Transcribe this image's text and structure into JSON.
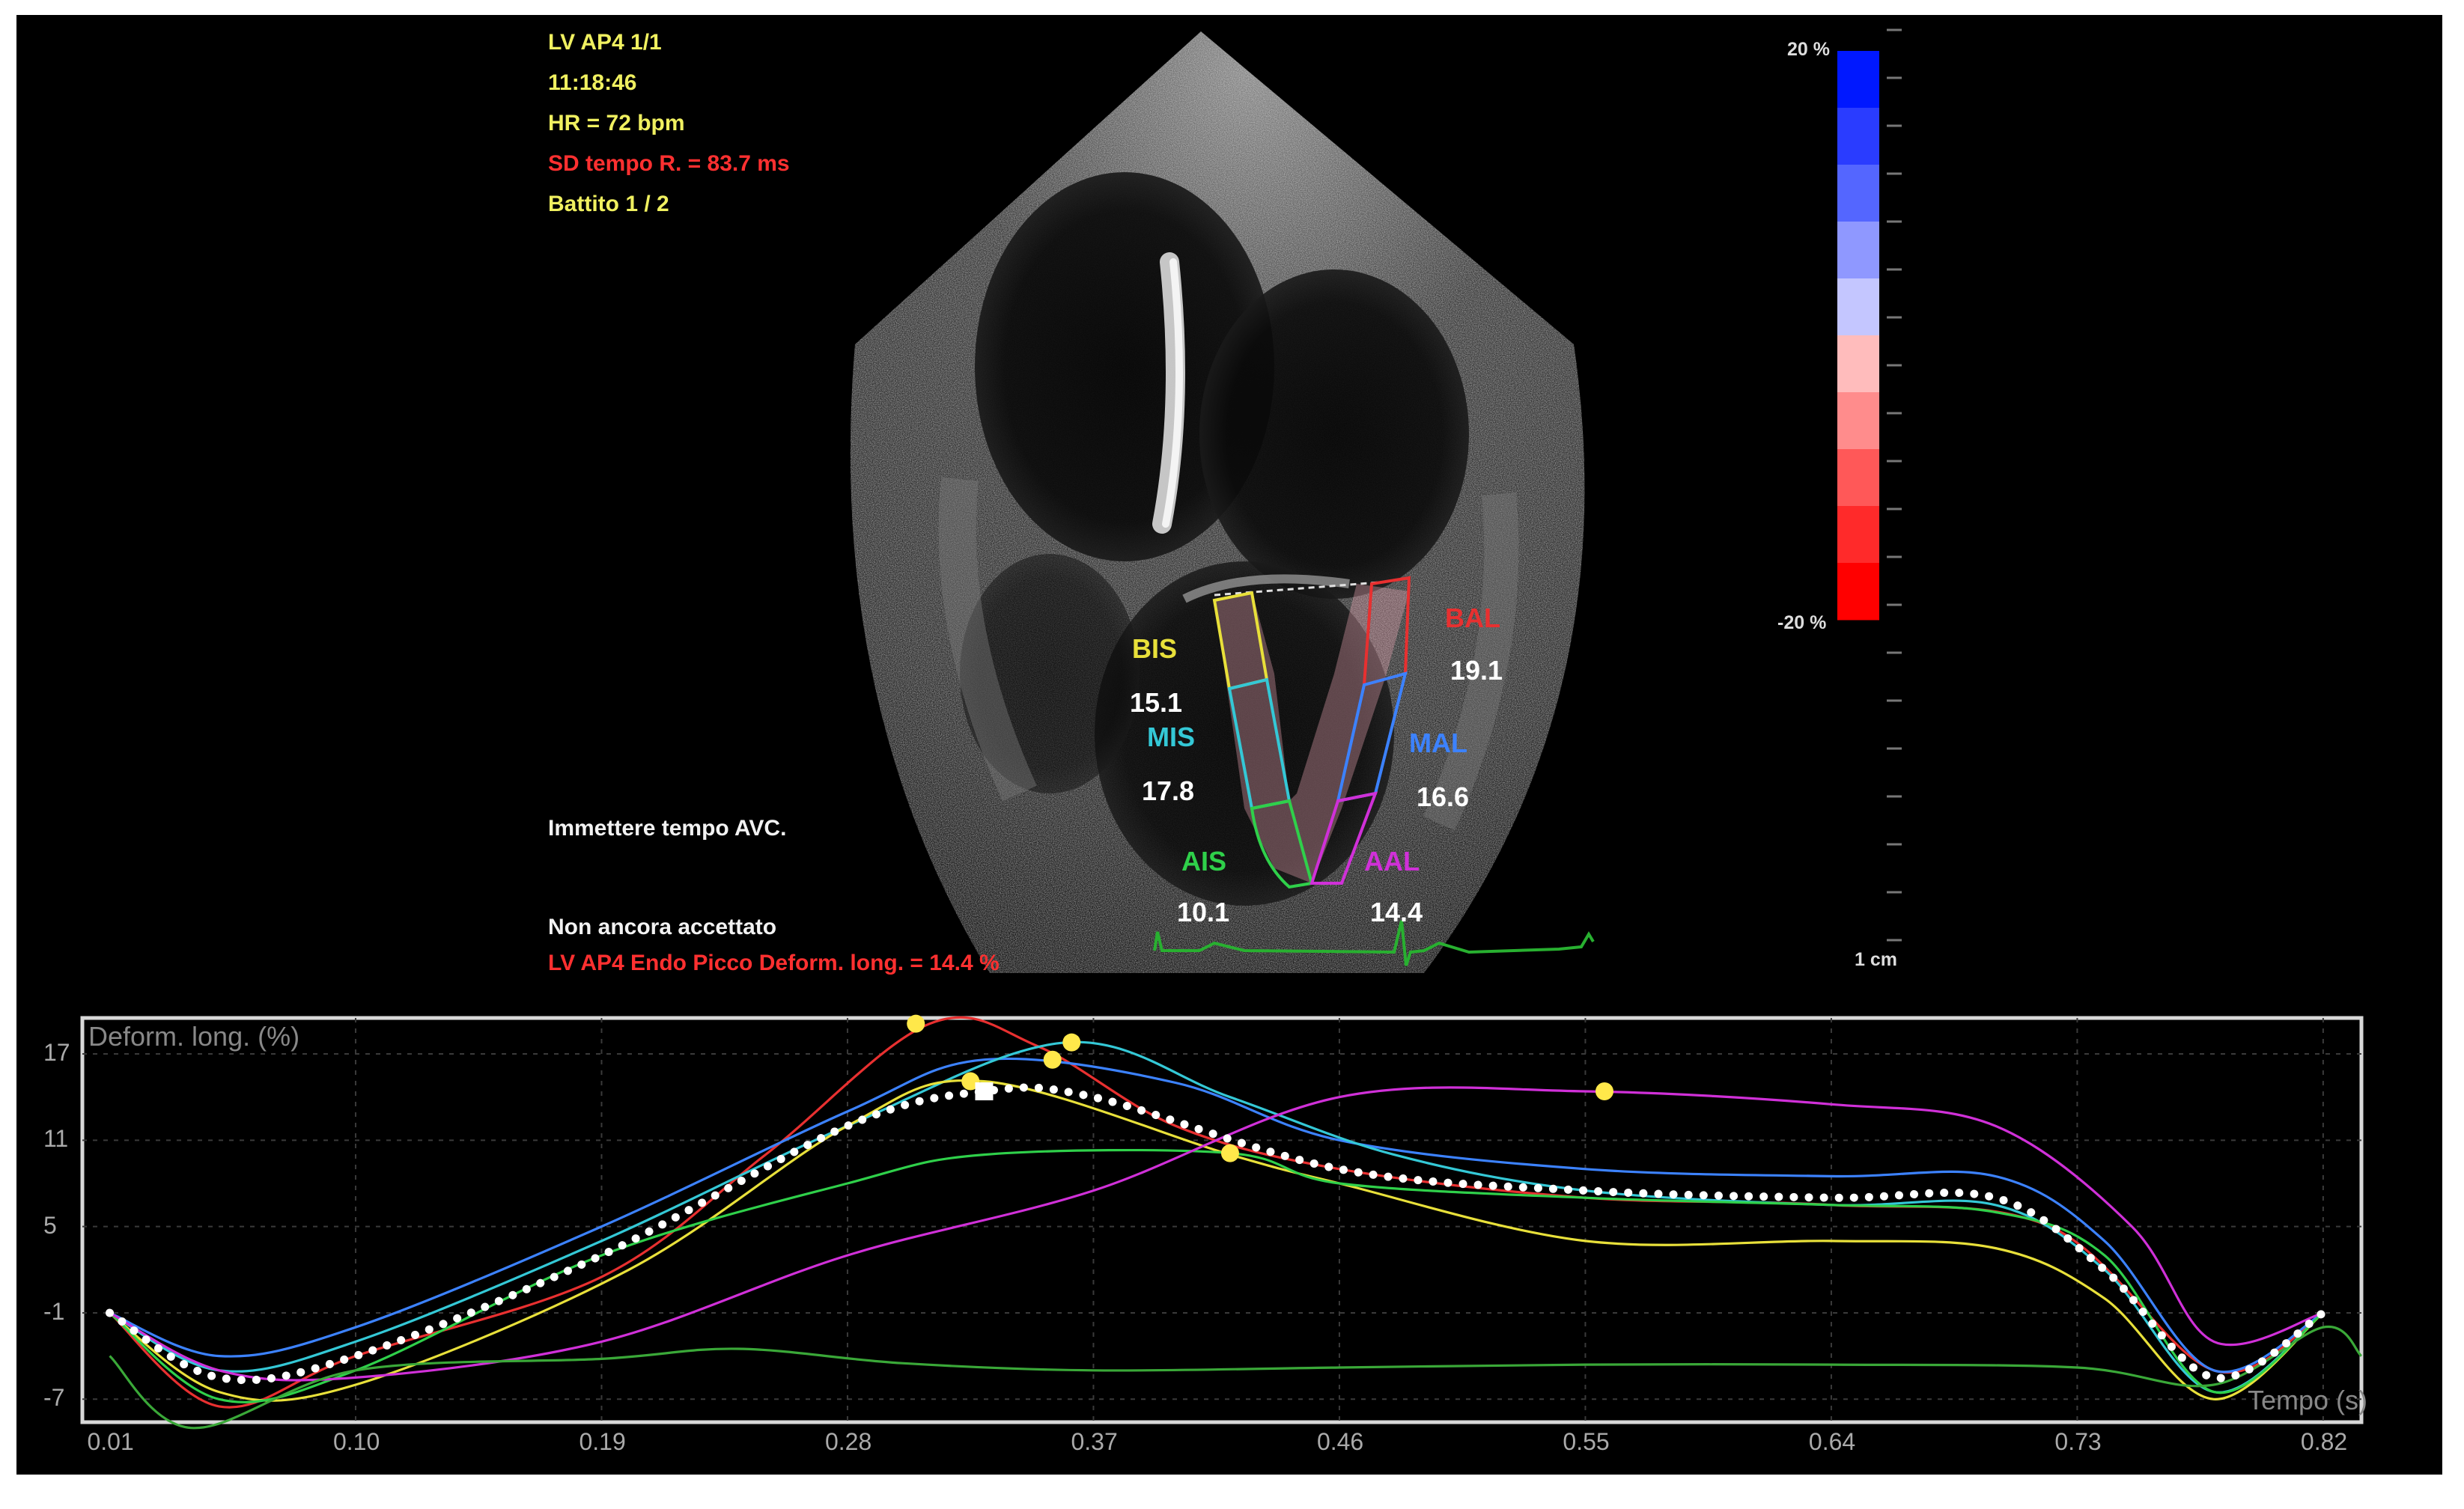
{
  "overlay": {
    "view": "LV AP4  1/1",
    "time": "11:18:46",
    "heart_rate": "HR = 72 bpm",
    "sd_tempo": "SD tempo R. = 83.7 ms",
    "battito": "Battito 1 / 2",
    "avc_prompt": "Immettere tempo AVC.",
    "not_accepted": "Non ancora accettato",
    "peak_strain": "LV AP4 Endo Picco Deform. long. = 14.4 %"
  },
  "colorbar": {
    "top_label": "20 %",
    "bottom_label": "-20 %",
    "scale_label": "1 cm",
    "colors": [
      "#0018ff",
      "#2a3cff",
      "#5466ff",
      "#8f98ff",
      "#c4c6ff",
      "#ffbcbc",
      "#ff8c8c",
      "#ff5858",
      "#ff2a2a",
      "#ff0000"
    ]
  },
  "segments": [
    {
      "name": "BIS",
      "value": "15.1",
      "color": "#e8e03a"
    },
    {
      "name": "MIS",
      "value": "17.8",
      "color": "#34c8d6"
    },
    {
      "name": "AIS",
      "value": "10.1",
      "color": "#2fd04a"
    },
    {
      "name": "BAL",
      "value": "19.1",
      "color": "#e83030"
    },
    {
      "name": "MAL",
      "value": "16.6",
      "color": "#3c82ff"
    },
    {
      "name": "AAL",
      "value": "14.4",
      "color": "#d030d8"
    }
  ],
  "chart_data": {
    "type": "line",
    "ylabel": "Deform. long. (%)",
    "xlabel": "Tempo (s)",
    "y_ticks": [
      17,
      11,
      5,
      -1,
      -7
    ],
    "x_ticks": [
      "0.01",
      "0.10",
      "0.19",
      "0.28",
      "0.37",
      "0.46",
      "0.55",
      "0.64",
      "0.73",
      "0.82"
    ],
    "xlim": [
      0.0,
      0.834
    ],
    "ylim": [
      -8.6,
      19.5
    ],
    "grid": true,
    "series": [
      {
        "color": "#e83030",
        "x": [
          0.01,
          0.05,
          0.1,
          0.19,
          0.25,
          0.31,
          0.35,
          0.4,
          0.46,
          0.55,
          0.64,
          0.72,
          0.78,
          0.82
        ],
        "y": [
          -1,
          -7.5,
          -4,
          1.5,
          10,
          19.1,
          17.5,
          12,
          9,
          7,
          6.5,
          5,
          -5,
          -1
        ]
      },
      {
        "color": "#3c82ff",
        "x": [
          0.01,
          0.05,
          0.1,
          0.19,
          0.28,
          0.33,
          0.4,
          0.46,
          0.55,
          0.64,
          0.7,
          0.74,
          0.78,
          0.82
        ],
        "y": [
          -1,
          -4,
          -2,
          5,
          13,
          16.6,
          15,
          11,
          9,
          8.5,
          8.5,
          4,
          -5,
          -1
        ]
      },
      {
        "color": "#34c8d6",
        "x": [
          0.01,
          0.05,
          0.1,
          0.19,
          0.28,
          0.36,
          0.42,
          0.48,
          0.55,
          0.64,
          0.7,
          0.74,
          0.78,
          0.82
        ],
        "y": [
          -1,
          -5,
          -3,
          4,
          12,
          17.8,
          14,
          10,
          7.5,
          6.5,
          6.5,
          2,
          -6.5,
          -1
        ]
      },
      {
        "color": "#e8e03a",
        "x": [
          0.01,
          0.05,
          0.1,
          0.2,
          0.28,
          0.33,
          0.42,
          0.46,
          0.55,
          0.64,
          0.7,
          0.74,
          0.78,
          0.82
        ],
        "y": [
          -1,
          -6.5,
          -6,
          2,
          12,
          15.1,
          10,
          8,
          4,
          4,
          3.5,
          0,
          -7,
          -1
        ]
      },
      {
        "color": "#2fd04a",
        "x": [
          0.01,
          0.05,
          0.1,
          0.19,
          0.28,
          0.33,
          0.42,
          0.46,
          0.55,
          0.64,
          0.7,
          0.74,
          0.78,
          0.82
        ],
        "y": [
          -1,
          -7,
          -5,
          3,
          8,
          10,
          10.1,
          8,
          7,
          6.5,
          6,
          3,
          -6.5,
          -1
        ]
      },
      {
        "color": "#d030d8",
        "x": [
          0.01,
          0.05,
          0.1,
          0.19,
          0.28,
          0.37,
          0.46,
          0.55,
          0.64,
          0.7,
          0.75,
          0.78,
          0.82
        ],
        "y": [
          -1,
          -5,
          -5.5,
          -3,
          3,
          7.5,
          14,
          14.4,
          13.5,
          12,
          5,
          -3,
          -1
        ]
      },
      {
        "color": "#3aa838",
        "x": [
          0.01,
          0.04,
          0.1,
          0.19,
          0.24,
          0.3,
          0.37,
          0.46,
          0.55,
          0.64,
          0.73,
          0.78,
          0.82,
          0.834
        ],
        "y": [
          -4,
          -9,
          -5,
          -4.2,
          -3.5,
          -4.5,
          -5,
          -4.8,
          -4.6,
          -4.6,
          -4.8,
          -6,
          -2,
          -4
        ]
      }
    ],
    "average": {
      "x": [
        0.01,
        0.05,
        0.1,
        0.19,
        0.28,
        0.33,
        0.37,
        0.46,
        0.55,
        0.64,
        0.7,
        0.74,
        0.78,
        0.82
      ],
      "y": [
        -1,
        -5.5,
        -4,
        3,
        12,
        14.4,
        14,
        9,
        7.5,
        7,
        7,
        2,
        -5.5,
        -1
      ]
    },
    "peak_markers": [
      {
        "x": 0.305,
        "y": 19.1,
        "color": "#ffe84a"
      },
      {
        "x": 0.325,
        "y": 15.1,
        "color": "#ffe84a"
      },
      {
        "x": 0.355,
        "y": 16.6,
        "color": "#ffe84a"
      },
      {
        "x": 0.362,
        "y": 17.8,
        "color": "#ffe84a"
      },
      {
        "x": 0.42,
        "y": 10.1,
        "color": "#ffe84a"
      },
      {
        "x": 0.557,
        "y": 14.4,
        "color": "#ffe84a"
      },
      {
        "x": 0.33,
        "y": 14.4,
        "color": "#ffffff"
      }
    ]
  }
}
